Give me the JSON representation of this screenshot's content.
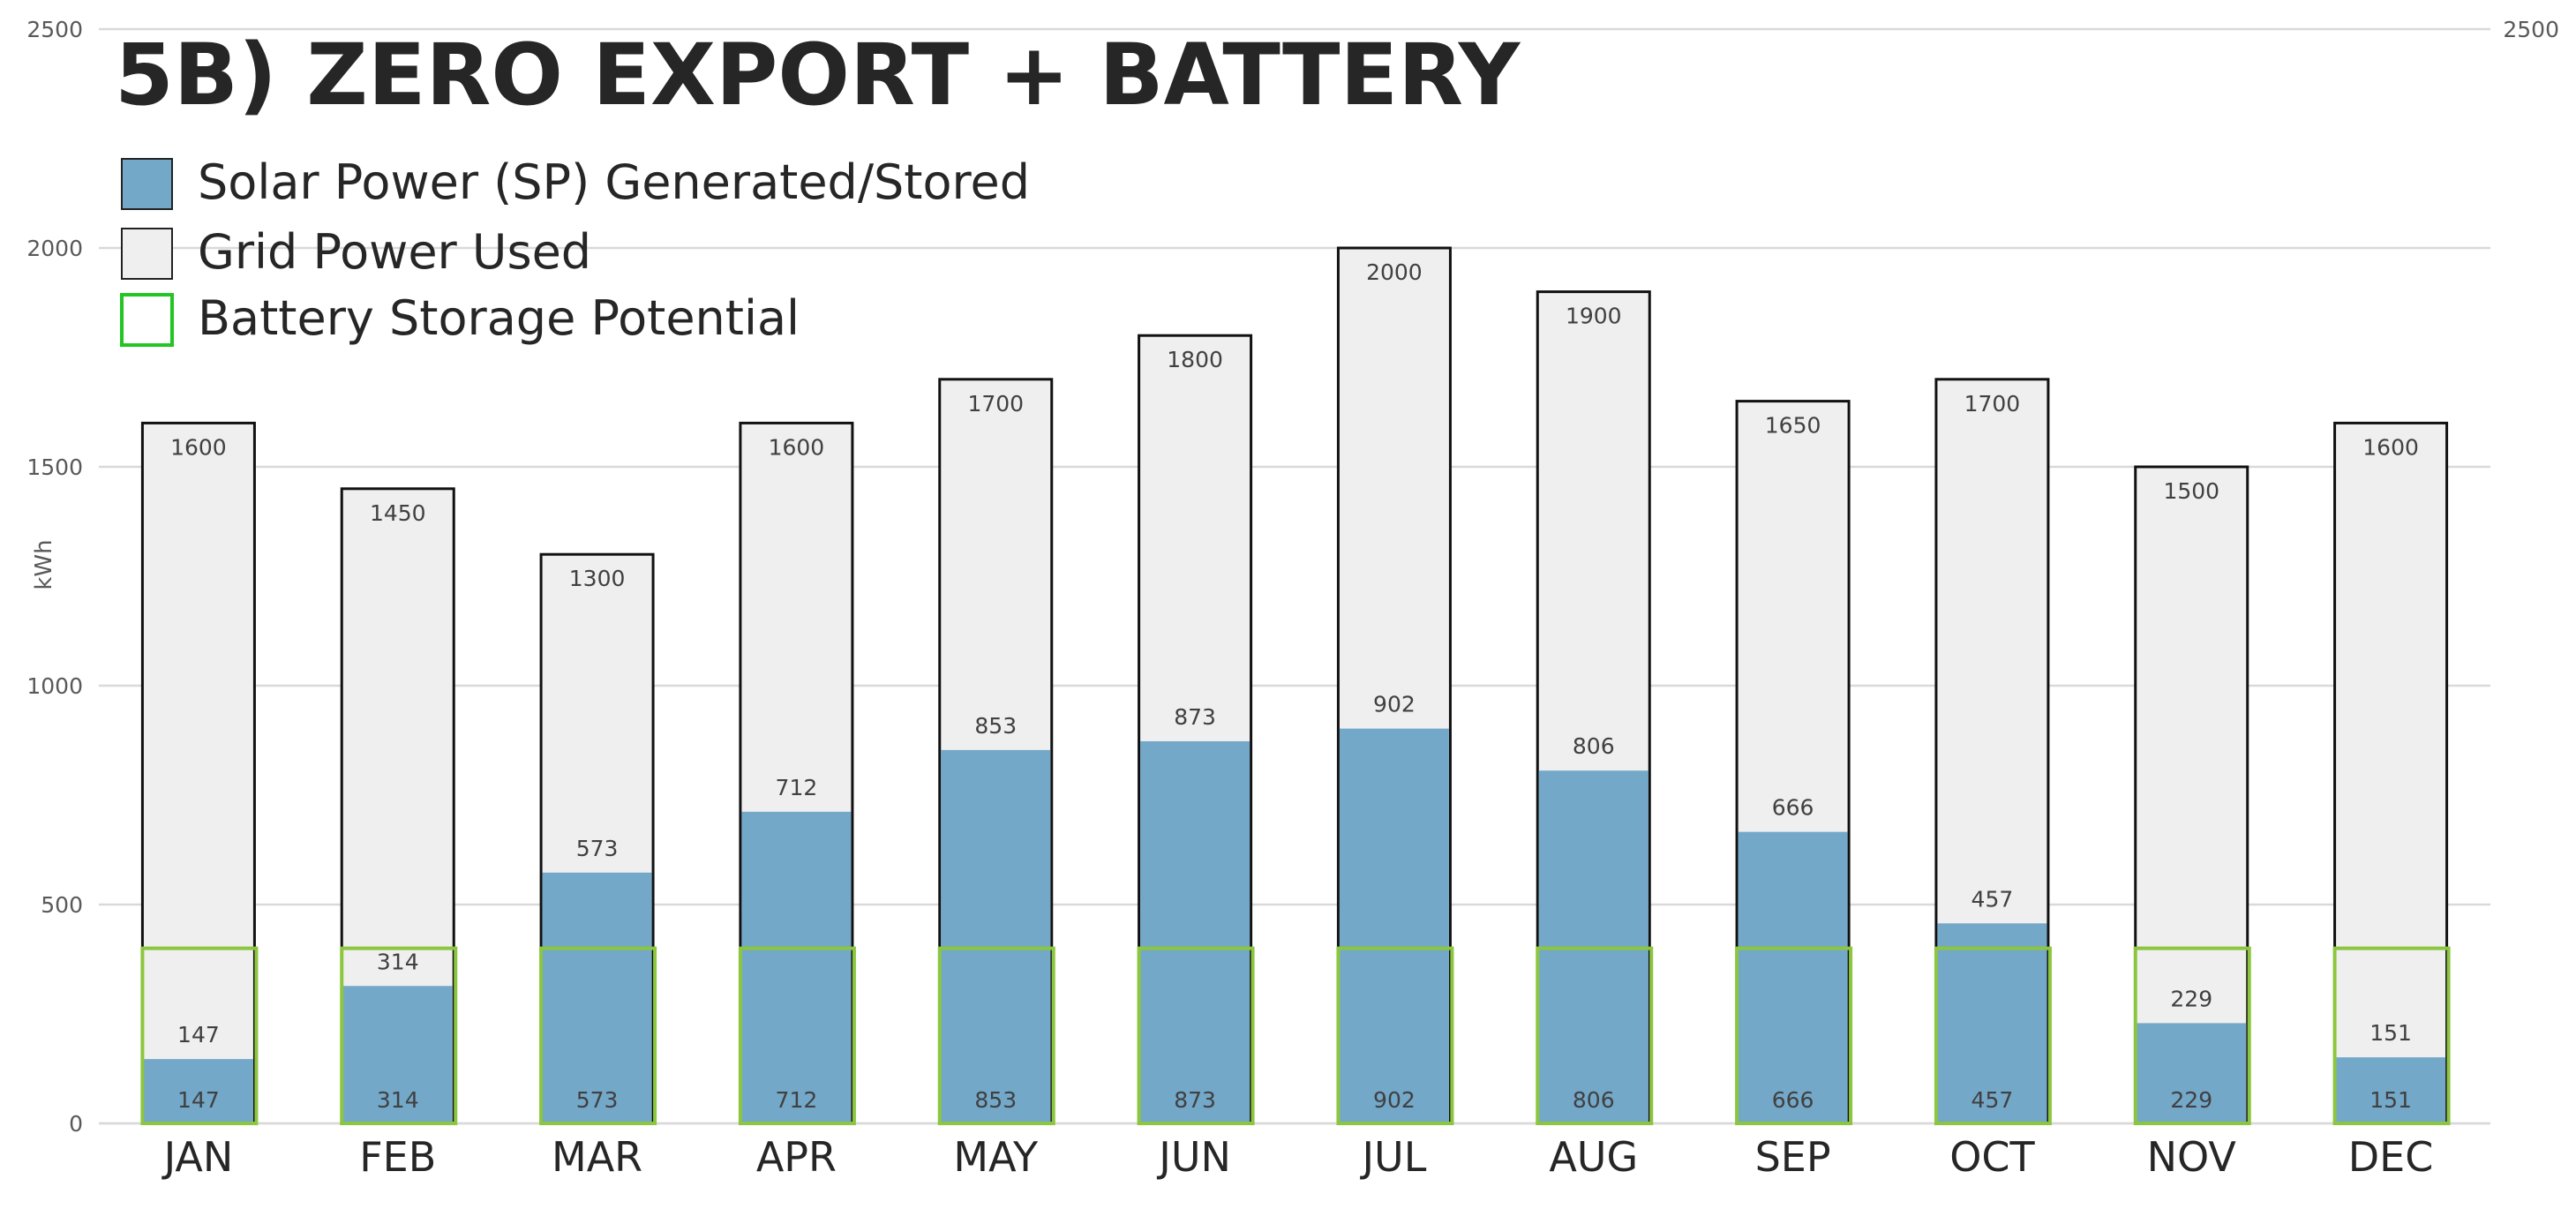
{
  "chart_data": {
    "type": "bar",
    "title": "5B) ZERO EXPORT + BATTERY",
    "ylabel": "kWh",
    "xlabel": "",
    "ylim": [
      0,
      2500
    ],
    "yticks": [
      0,
      500,
      1000,
      1500,
      2000,
      2500
    ],
    "grid": true,
    "legend_position": "top-left",
    "categories": [
      "JAN",
      "FEB",
      "MAR",
      "APR",
      "MAY",
      "JUN",
      "JUL",
      "AUG",
      "SEP",
      "OCT",
      "NOV",
      "DEC"
    ],
    "series": [
      {
        "name": "Grid Power Used",
        "role": "total-bar",
        "color": "#efefef",
        "values": [
          1600,
          1450,
          1300,
          1600,
          1700,
          1800,
          2000,
          1900,
          1650,
          1700,
          1500,
          1600
        ]
      },
      {
        "name": "Solar Power (SP) Generated/Stored",
        "role": "solar-bar",
        "color": "#73a8c9",
        "values": [
          147,
          314,
          573,
          712,
          853,
          873,
          902,
          806,
          666,
          457,
          229,
          151
        ]
      },
      {
        "name": "Battery Storage Potential",
        "role": "battery-box",
        "color": "#8cc63f",
        "battery_capacity": 400,
        "values": [
          147,
          314,
          573,
          712,
          853,
          873,
          902,
          806,
          666,
          457,
          229,
          151
        ]
      }
    ],
    "legend": [
      {
        "label": "Solar Power (SP) Generated/Stored",
        "color": "#73a8c9",
        "style": "filled"
      },
      {
        "label": "Grid Power Used",
        "color": "#efefef",
        "style": "filled"
      },
      {
        "label": "Battery Storage Potential",
        "color": "#22c522",
        "style": "outline"
      }
    ]
  }
}
